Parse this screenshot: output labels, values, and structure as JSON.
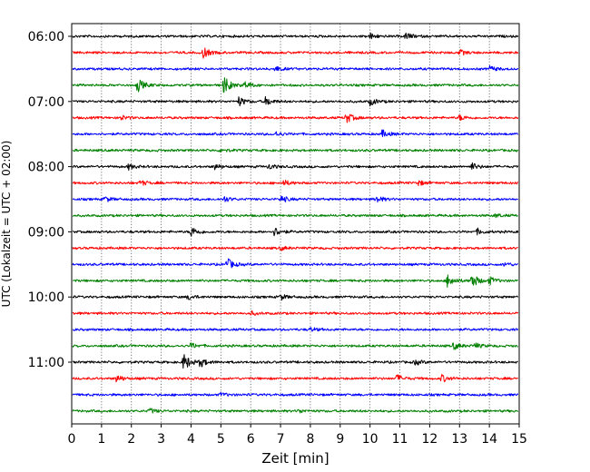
{
  "chart_data": {
    "type": "line",
    "subtype": "helicorder",
    "xlabel": "Zeit  [min]",
    "ylabel": "UTC (Lokalzeit = UTC + 02:00)",
    "xlim": [
      0,
      15
    ],
    "x_ticks": [
      "0",
      "1",
      "2",
      "3",
      "4",
      "5",
      "6",
      "7",
      "8",
      "9",
      "10",
      "11",
      "12",
      "13",
      "14",
      "15"
    ],
    "y_ticks": [
      "06:00",
      "07:00",
      "08:00",
      "09:00",
      "10:00",
      "11:00"
    ],
    "grid": "vertical dotted",
    "trace_colors": [
      "#000000",
      "#ff0000",
      "#0000ff",
      "#008000"
    ],
    "trace_interval_min": 15,
    "traces": [
      {
        "start": "06:00",
        "color": "#000000",
        "events": [
          {
            "t": 10.0,
            "amp": 3
          },
          {
            "t": 11.2,
            "amp": 4
          }
        ]
      },
      {
        "start": "06:15",
        "color": "#ff0000",
        "events": [
          {
            "t": 4.4,
            "amp": 6
          },
          {
            "t": 13.0,
            "amp": 3
          }
        ]
      },
      {
        "start": "06:30",
        "color": "#0000ff",
        "events": [
          {
            "t": 6.8,
            "amp": 3
          },
          {
            "t": 14.0,
            "amp": 3
          }
        ]
      },
      {
        "start": "06:45",
        "color": "#008000",
        "events": [
          {
            "t": 2.2,
            "amp": 8
          },
          {
            "t": 5.1,
            "amp": 10
          },
          {
            "t": 5.8,
            "amp": 4
          }
        ]
      },
      {
        "start": "07:00",
        "color": "#000000",
        "events": [
          {
            "t": 5.6,
            "amp": 5
          },
          {
            "t": 6.5,
            "amp": 5
          },
          {
            "t": 10.0,
            "amp": 4
          }
        ]
      },
      {
        "start": "07:15",
        "color": "#ff0000",
        "events": [
          {
            "t": 1.6,
            "amp": 3
          },
          {
            "t": 9.2,
            "amp": 6
          },
          {
            "t": 13.0,
            "amp": 3
          }
        ]
      },
      {
        "start": "07:30",
        "color": "#0000ff",
        "events": [
          {
            "t": 6.8,
            "amp": 3
          },
          {
            "t": 10.4,
            "amp": 4
          }
        ]
      },
      {
        "start": "07:45",
        "color": "#008000",
        "events": [
          {
            "t": 5.0,
            "amp": 2
          }
        ]
      },
      {
        "start": "08:00",
        "color": "#000000",
        "events": [
          {
            "t": 1.9,
            "amp": 3
          },
          {
            "t": 4.8,
            "amp": 3
          },
          {
            "t": 6.6,
            "amp": 3
          },
          {
            "t": 13.4,
            "amp": 4
          }
        ]
      },
      {
        "start": "08:15",
        "color": "#ff0000",
        "events": [
          {
            "t": 2.3,
            "amp": 3
          },
          {
            "t": 7.1,
            "amp": 3
          },
          {
            "t": 11.6,
            "amp": 3
          }
        ]
      },
      {
        "start": "08:30",
        "color": "#0000ff",
        "events": [
          {
            "t": 1.1,
            "amp": 3
          },
          {
            "t": 5.1,
            "amp": 3
          },
          {
            "t": 7.0,
            "amp": 4
          },
          {
            "t": 10.2,
            "amp": 4
          }
        ]
      },
      {
        "start": "08:45",
        "color": "#008000",
        "events": [
          {
            "t": 14.2,
            "amp": 2
          }
        ]
      },
      {
        "start": "09:00",
        "color": "#000000",
        "events": [
          {
            "t": 4.0,
            "amp": 6
          },
          {
            "t": 6.8,
            "amp": 5
          },
          {
            "t": 13.6,
            "amp": 3
          }
        ]
      },
      {
        "start": "09:15",
        "color": "#ff0000",
        "events": [
          {
            "t": 7.0,
            "amp": 2
          }
        ]
      },
      {
        "start": "09:30",
        "color": "#0000ff",
        "events": [
          {
            "t": 5.2,
            "amp": 7
          },
          {
            "t": 14.5,
            "amp": 2
          }
        ]
      },
      {
        "start": "09:45",
        "color": "#008000",
        "events": [
          {
            "t": 12.6,
            "amp": 8
          },
          {
            "t": 13.4,
            "amp": 9
          },
          {
            "t": 14.0,
            "amp": 4
          }
        ]
      },
      {
        "start": "10:00",
        "color": "#000000",
        "events": [
          {
            "t": 3.9,
            "amp": 3
          },
          {
            "t": 7.0,
            "amp": 3
          }
        ]
      },
      {
        "start": "10:15",
        "color": "#ff0000",
        "events": [
          {
            "t": 6.0,
            "amp": 2
          }
        ]
      },
      {
        "start": "10:30",
        "color": "#0000ff",
        "events": [
          {
            "t": 8.0,
            "amp": 2
          }
        ]
      },
      {
        "start": "10:45",
        "color": "#008000",
        "events": [
          {
            "t": 4.0,
            "amp": 3
          },
          {
            "t": 12.8,
            "amp": 4
          },
          {
            "t": 13.5,
            "amp": 3
          }
        ]
      },
      {
        "start": "11:00",
        "color": "#000000",
        "events": [
          {
            "t": 3.75,
            "amp": 10
          },
          {
            "t": 4.3,
            "amp": 5
          },
          {
            "t": 11.5,
            "amp": 3
          }
        ]
      },
      {
        "start": "11:15",
        "color": "#ff0000",
        "events": [
          {
            "t": 1.5,
            "amp": 4
          },
          {
            "t": 10.9,
            "amp": 4
          },
          {
            "t": 12.4,
            "amp": 4
          }
        ]
      },
      {
        "start": "11:30",
        "color": "#0000ff",
        "events": [
          {
            "t": 5.0,
            "amp": 2
          }
        ]
      },
      {
        "start": "11:45",
        "color": "#008000",
        "events": [
          {
            "t": 2.6,
            "amp": 3
          },
          {
            "t": 7.6,
            "amp": 2
          }
        ]
      }
    ]
  }
}
